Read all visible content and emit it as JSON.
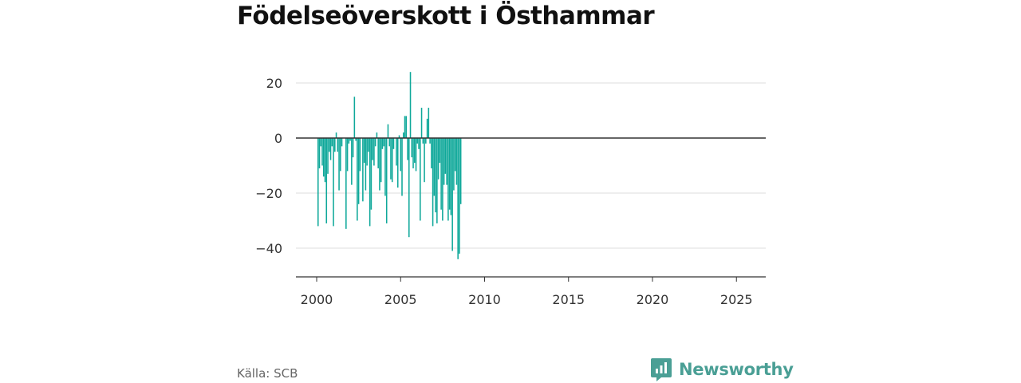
{
  "title": "Födelseöverskott i Östhammar",
  "source": "Källa: SCB",
  "brand": {
    "name": "Newsworthy",
    "icon": "newsworthy-logo-icon",
    "color": "#4a9f95"
  },
  "chart_data": {
    "type": "bar",
    "title": "Födelseöverskott i Östhammar",
    "xlabel": "",
    "ylabel": "",
    "bar_color": "#0fa89a",
    "grid": true,
    "ylim": [
      -50,
      28
    ],
    "xlim": [
      1998.8,
      2026.7
    ],
    "y_ticks": [
      20,
      0,
      -20,
      -40
    ],
    "y_tick_labels": [
      "20",
      "0",
      "−20",
      "−40"
    ],
    "x_ticks": [
      2000,
      2005,
      2010,
      2015,
      2020,
      2025
    ],
    "x_tick_labels": [
      "2000",
      "2005",
      "2010",
      "2015",
      "2020",
      "2025"
    ],
    "start": "2000-01",
    "frequency": "monthly",
    "values": [
      -32,
      -11,
      -3,
      -10,
      -14,
      -16,
      -31,
      -13,
      -5,
      -8,
      -3,
      -32,
      -5,
      2,
      -5,
      -19,
      -12,
      -3,
      0,
      0,
      -33,
      -12,
      -2,
      -1,
      -17,
      -7,
      15,
      -1,
      -30,
      -24,
      -12,
      0,
      -23,
      -9,
      -19,
      -10,
      -5,
      -32,
      -26,
      -8,
      -10,
      -3,
      2,
      -11,
      -19,
      -16,
      -4,
      -3,
      -21,
      -31,
      5,
      -3,
      -15,
      -16,
      -4,
      0,
      -10,
      -18,
      1,
      -12,
      -21,
      2,
      8,
      8,
      -8,
      -36,
      24,
      -7,
      -11,
      -9,
      -12,
      -2,
      -4,
      -30,
      11,
      -2,
      -16,
      -2,
      7,
      11,
      -2,
      -11,
      -32,
      -21,
      -27,
      -31,
      -15,
      -9,
      -26,
      -30,
      -17,
      -13,
      -17,
      -30,
      -26,
      -28,
      -41,
      -19,
      -12,
      -17,
      -44,
      -42,
      -24
    ]
  }
}
